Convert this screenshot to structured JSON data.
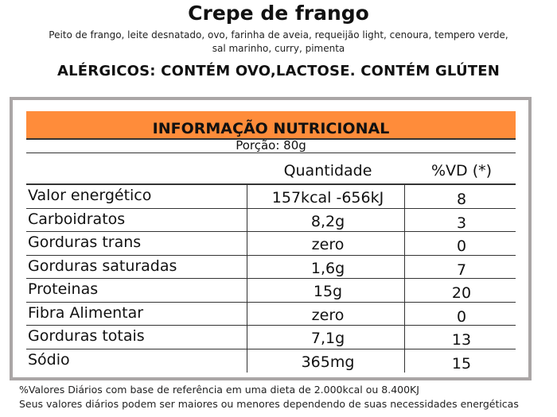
{
  "title": "Crepe de frango",
  "ingredients_line1": "Peito de frango, leite desnatado, ovo, farinha de aveia, requeijão light, cenoura, tempero verde,",
  "ingredients_line2": "sal marinho, curry, pimenta",
  "allergens": "ALÉRGICOS: CONTÉM OVO,LACTOSE. CONTÉM GLÚTEN",
  "table": {
    "heading": "INFORMAÇÃO NUTRICIONAL",
    "portion": "Porção: 80g",
    "col_quantity": "Quantidade",
    "col_dv": "%VD (*)",
    "rows": [
      {
        "name": "Valor energético",
        "quantity": "157kcal -656kJ",
        "dv": "8"
      },
      {
        "name": "Carboidratos",
        "quantity": "8,2g",
        "dv": "3"
      },
      {
        "name": "Gorduras trans",
        "quantity": "zero",
        "dv": "0"
      },
      {
        "name": "Gorduras saturadas",
        "quantity": "1,6g",
        "dv": "7"
      },
      {
        "name": "Proteinas",
        "quantity": "15g",
        "dv": "20"
      },
      {
        "name": "Fibra Alimentar",
        "quantity": "zero",
        "dv": "0"
      },
      {
        "name": "Gorduras totais",
        "quantity": "7,1g",
        "dv": "13"
      },
      {
        "name": "Sódio",
        "quantity": "365mg",
        "dv": "15"
      }
    ]
  },
  "footnote1": "%Valores Diários com base de referência em uma dieta de 2.000kcal ou 8.400KJ",
  "footnote2": "Seus valores diários podem ser maiores ou menores dependendo de suas necessidades energéticas",
  "colors": {
    "header_orange": "#ff8c3a",
    "panel_border": "#aaa6a6"
  }
}
